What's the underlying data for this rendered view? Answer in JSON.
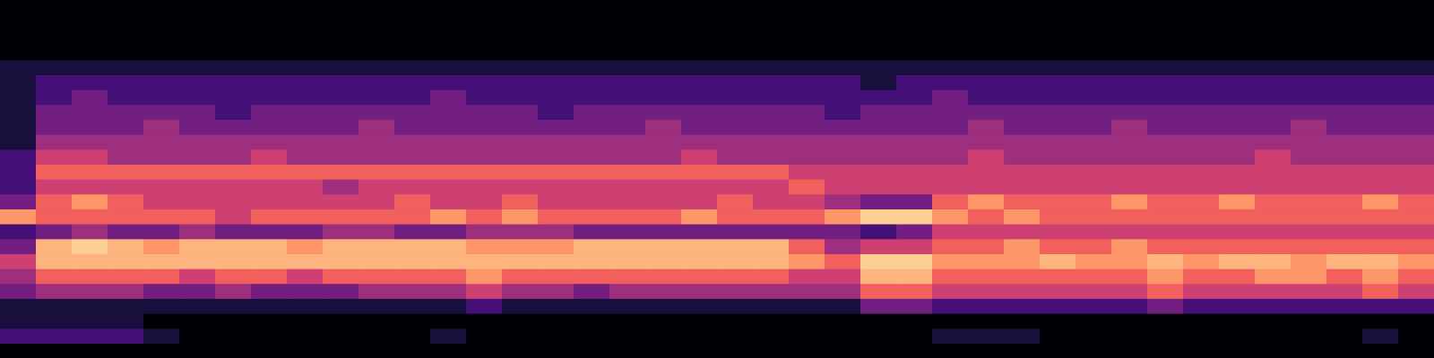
{
  "chart_data": {
    "type": "heatmap",
    "tick_labels": false,
    "xlim": [
      0,
      40
    ],
    "ylim": [
      0,
      24
    ],
    "color_range": [
      0,
      9
    ],
    "cells": [
      [
        0,
        0,
        0,
        0,
        0,
        0,
        0,
        0,
        0,
        0,
        0,
        0,
        0,
        0,
        0,
        0,
        0,
        0,
        0,
        0,
        0,
        0,
        0,
        0,
        0,
        0,
        0,
        0,
        0,
        0,
        0,
        0,
        0,
        0,
        0,
        0,
        0,
        0,
        0,
        0
      ],
      [
        2,
        2,
        2,
        2,
        1,
        0,
        0,
        0,
        0,
        0,
        0,
        0,
        1,
        0,
        0,
        0,
        0,
        0,
        0,
        0,
        0,
        0,
        0,
        0,
        0,
        0,
        1,
        1,
        1,
        0,
        0,
        0,
        0,
        0,
        0,
        0,
        0,
        0,
        1,
        0
      ],
      [
        1,
        1,
        1,
        1,
        0,
        0,
        0,
        0,
        0,
        0,
        0,
        0,
        0,
        0,
        0,
        0,
        0,
        0,
        0,
        0,
        0,
        0,
        0,
        0,
        0,
        0,
        0,
        0,
        0,
        0,
        0,
        0,
        0,
        0,
        0,
        0,
        0,
        0,
        0,
        0
      ],
      [
        1,
        1,
        1,
        1,
        1,
        1,
        1,
        1,
        1,
        1,
        1,
        1,
        1,
        2,
        1,
        1,
        1,
        1,
        1,
        1,
        1,
        1,
        1,
        1,
        3,
        3,
        2,
        2,
        2,
        2,
        2,
        2,
        3,
        2,
        2,
        2,
        2,
        2,
        2,
        2
      ],
      [
        3,
        4,
        4,
        4,
        3,
        3,
        4,
        3,
        3,
        3,
        4,
        4,
        4,
        5,
        4,
        4,
        3,
        4,
        4,
        4,
        4,
        4,
        4,
        4,
        6,
        6,
        5,
        5,
        5,
        5,
        5,
        5,
        6,
        5,
        5,
        5,
        5,
        5,
        6,
        5
      ],
      [
        4,
        6,
        6,
        6,
        6,
        5,
        6,
        6,
        5,
        6,
        6,
        6,
        6,
        7,
        6,
        6,
        6,
        6,
        6,
        6,
        6,
        6,
        5,
        5,
        8,
        8,
        6,
        6,
        6,
        6,
        6,
        6,
        7,
        6,
        6,
        7,
        7,
        6,
        7,
        6
      ],
      [
        5,
        8,
        8,
        8,
        8,
        8,
        8,
        8,
        8,
        8,
        8,
        8,
        8,
        8,
        8,
        8,
        8,
        8,
        8,
        8,
        8,
        8,
        7,
        6,
        9,
        9,
        7,
        7,
        7,
        8,
        7,
        7,
        8,
        7,
        8,
        8,
        7,
        8,
        8,
        7
      ],
      [
        3,
        8,
        9,
        8,
        7,
        8,
        8,
        8,
        7,
        8,
        8,
        8,
        8,
        7,
        7,
        7,
        8,
        8,
        8,
        8,
        8,
        8,
        6,
        4,
        5,
        5,
        6,
        6,
        7,
        6,
        6,
        7,
        6,
        6,
        6,
        6,
        6,
        6,
        6,
        6
      ],
      [
        2,
        3,
        4,
        3,
        3,
        4,
        3,
        3,
        3,
        4,
        4,
        3,
        3,
        4,
        4,
        4,
        3,
        3,
        3,
        3,
        3,
        3,
        3,
        3,
        2,
        3,
        5,
        5,
        5,
        5,
        5,
        5,
        5,
        5,
        5,
        5,
        5,
        5,
        5,
        5
      ],
      [
        7,
        6,
        6,
        6,
        6,
        6,
        5,
        6,
        6,
        6,
        6,
        6,
        7,
        6,
        7,
        6,
        6,
        6,
        6,
        7,
        6,
        6,
        6,
        7,
        9,
        9,
        7,
        6,
        7,
        6,
        6,
        6,
        6,
        6,
        6,
        6,
        6,
        6,
        6,
        6
      ],
      [
        3,
        6,
        7,
        6,
        5,
        5,
        5,
        5,
        5,
        5,
        5,
        6,
        5,
        5,
        6,
        5,
        5,
        5,
        5,
        5,
        6,
        5,
        5,
        4,
        3,
        3,
        6,
        7,
        6,
        6,
        6,
        7,
        6,
        6,
        7,
        6,
        6,
        6,
        7,
        6
      ],
      [
        2,
        5,
        5,
        5,
        5,
        5,
        5,
        5,
        5,
        4,
        5,
        5,
        5,
        5,
        5,
        5,
        5,
        5,
        5,
        5,
        5,
        5,
        6,
        5,
        5,
        5,
        5,
        5,
        5,
        5,
        5,
        5,
        5,
        5,
        5,
        5,
        5,
        5,
        5,
        5
      ],
      [
        2,
        6,
        6,
        6,
        6,
        6,
        6,
        6,
        6,
        6,
        6,
        6,
        6,
        6,
        6,
        6,
        6,
        6,
        6,
        6,
        6,
        6,
        5,
        5,
        5,
        5,
        5,
        5,
        5,
        5,
        5,
        5,
        5,
        5,
        5,
        5,
        5,
        5,
        5,
        5
      ],
      [
        2,
        5,
        5,
        4,
        4,
        4,
        4,
        5,
        4,
        4,
        4,
        4,
        4,
        4,
        4,
        4,
        4,
        4,
        4,
        5,
        4,
        4,
        4,
        4,
        4,
        4,
        4,
        5,
        4,
        4,
        4,
        4,
        4,
        4,
        4,
        5,
        4,
        4,
        4,
        4
      ],
      [
        1,
        4,
        4,
        4,
        4,
        4,
        4,
        4,
        4,
        4,
        4,
        4,
        4,
        4,
        4,
        4,
        4,
        4,
        4,
        4,
        4,
        4,
        4,
        4,
        4,
        4,
        4,
        4,
        4,
        4,
        4,
        4,
        4,
        4,
        4,
        4,
        4,
        4,
        4,
        4
      ],
      [
        1,
        3,
        3,
        3,
        4,
        3,
        3,
        3,
        3,
        3,
        4,
        3,
        3,
        3,
        3,
        3,
        3,
        3,
        4,
        3,
        3,
        3,
        3,
        3,
        3,
        3,
        3,
        4,
        3,
        3,
        3,
        4,
        3,
        3,
        3,
        3,
        4,
        3,
        3,
        3
      ],
      [
        1,
        3,
        3,
        3,
        3,
        3,
        2,
        3,
        3,
        3,
        3,
        3,
        3,
        3,
        3,
        2,
        3,
        3,
        3,
        3,
        3,
        3,
        3,
        2,
        3,
        3,
        3,
        3,
        3,
        3,
        3,
        3,
        3,
        3,
        3,
        3,
        3,
        3,
        3,
        3
      ],
      [
        1,
        2,
        3,
        2,
        2,
        2,
        2,
        2,
        2,
        2,
        2,
        2,
        3,
        2,
        2,
        2,
        2,
        2,
        2,
        2,
        2,
        2,
        2,
        2,
        2,
        2,
        3,
        2,
        2,
        2,
        2,
        2,
        2,
        2,
        2,
        2,
        2,
        2,
        2,
        2
      ],
      [
        1,
        2,
        2,
        2,
        2,
        2,
        2,
        2,
        2,
        2,
        2,
        2,
        2,
        2,
        2,
        2,
        2,
        2,
        2,
        2,
        2,
        2,
        2,
        2,
        1,
        2,
        2,
        2,
        2,
        2,
        2,
        2,
        2,
        2,
        2,
        2,
        2,
        2,
        2,
        2
      ],
      [
        1,
        1,
        1,
        1,
        1,
        1,
        1,
        1,
        1,
        1,
        1,
        1,
        1,
        1,
        1,
        1,
        1,
        1,
        1,
        1,
        1,
        1,
        1,
        1,
        1,
        1,
        1,
        1,
        1,
        1,
        1,
        1,
        1,
        1,
        1,
        1,
        1,
        1,
        1,
        1
      ],
      [
        0,
        0,
        0,
        0,
        0,
        0,
        0,
        0,
        0,
        0,
        0,
        0,
        0,
        0,
        0,
        0,
        0,
        0,
        0,
        0,
        0,
        0,
        0,
        0,
        0,
        0,
        0,
        0,
        0,
        0,
        0,
        0,
        0,
        0,
        0,
        0,
        0,
        0,
        0,
        0
      ],
      [
        0,
        0,
        0,
        0,
        0,
        0,
        0,
        0,
        0,
        0,
        0,
        0,
        0,
        0,
        0,
        0,
        0,
        0,
        0,
        0,
        0,
        0,
        0,
        0,
        0,
        0,
        0,
        0,
        0,
        0,
        0,
        0,
        0,
        0,
        0,
        0,
        0,
        0,
        0,
        0
      ],
      [
        0,
        0,
        0,
        0,
        0,
        0,
        0,
        0,
        0,
        0,
        0,
        0,
        0,
        0,
        0,
        0,
        0,
        0,
        0,
        0,
        0,
        0,
        0,
        0,
        0,
        0,
        0,
        0,
        0,
        0,
        0,
        0,
        0,
        0,
        0,
        0,
        0,
        0,
        0,
        0
      ],
      [
        0,
        0,
        0,
        0,
        0,
        0,
        0,
        0,
        0,
        0,
        0,
        0,
        0,
        0,
        0,
        0,
        0,
        0,
        0,
        0,
        0,
        0,
        0,
        0,
        0,
        0,
        0,
        0,
        0,
        0,
        0,
        0,
        0,
        0,
        0,
        0,
        0,
        0,
        0,
        0
      ]
    ]
  }
}
